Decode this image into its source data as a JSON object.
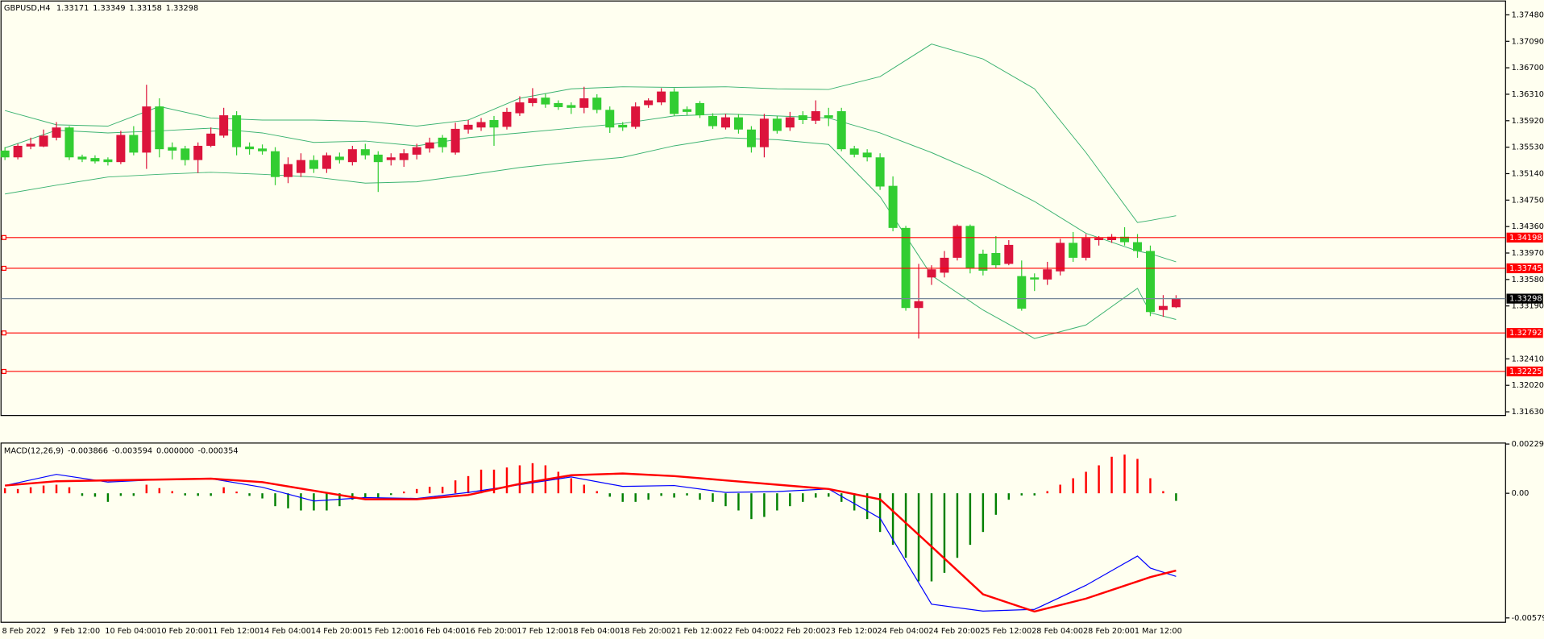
{
  "chart_data": [
    {
      "type": "candlestick",
      "title": "GBPUSD,H4",
      "categories": [
        "8 Feb 2022",
        null,
        null,
        null,
        "9 Feb 12:00",
        null,
        null,
        null,
        "10 Feb 04:00",
        null,
        null,
        null,
        "10 Feb 20:00",
        null,
        null,
        null,
        "11 Feb 12:00",
        null,
        null,
        null,
        "14 Feb 04:00",
        null,
        null,
        null,
        "14 Feb 20:00",
        null,
        null,
        null,
        "15 Feb 12:00",
        null,
        null,
        null,
        "16 Feb 04:00",
        null,
        null,
        null,
        "16 Feb 20:00",
        null,
        null,
        null,
        "17 Feb 12:00",
        null,
        null,
        null,
        "18 Feb 04:00",
        null,
        null,
        null,
        "18 Feb 20:00",
        null,
        null,
        null,
        "21 Feb 12:00",
        null,
        null,
        null,
        "22 Feb 04:00",
        null,
        null,
        null,
        "22 Feb 20:00",
        null,
        null,
        null,
        "23 Feb 12:00",
        null,
        null,
        null,
        "24 Feb 04:00",
        null,
        null,
        null,
        "24 Feb 20:00",
        null,
        null,
        null,
        "25 Feb 12:00",
        null,
        null,
        null,
        "28 Feb 04:00",
        null,
        null,
        null,
        "28 Feb 20:00",
        null,
        null,
        null,
        "1 Mar 12:00",
        null,
        null,
        null
      ],
      "open": [
        1.3548,
        1.3538,
        1.3554,
        1.3554,
        1.3567,
        1.3582,
        1.3539,
        1.3537,
        1.3535,
        1.3531,
        1.3571,
        1.3545,
        1.3613,
        1.3553,
        1.3551,
        1.3534,
        1.3555,
        1.357,
        1.36,
        1.3554,
        1.3551,
        1.3547,
        1.3509,
        1.3515,
        1.3534,
        1.3521,
        1.3539,
        1.3531,
        1.355,
        1.3542,
        1.3534,
        1.3534,
        1.3542,
        1.3551,
        1.3567,
        1.3545,
        1.3579,
        1.3582,
        1.3593,
        1.3583,
        1.3603,
        1.3618,
        1.3626,
        1.3618,
        1.3615,
        1.3611,
        1.3626,
        1.3608,
        1.3586,
        1.3583,
        1.3615,
        1.3619,
        1.3635,
        1.3609,
        1.3618,
        1.3599,
        1.3582,
        1.3597,
        1.3579,
        1.3553,
        1.3595,
        1.3582,
        1.36,
        1.3592,
        1.36,
        1.3606,
        1.3551,
        1.3545,
        1.3538,
        1.3496,
        1.3434,
        1.3316,
        1.3361,
        1.3368,
        1.339,
        1.3437,
        1.3396,
        1.3397,
        1.3381,
        1.3363,
        1.3361,
        1.3358,
        1.337,
        1.3412,
        1.339,
        1.3416,
        1.3416,
        1.3421,
        1.3413,
        1.34,
        1.3313,
        1.33171
      ],
      "high": [
        1.3553,
        1.3558,
        1.3567,
        1.3579,
        1.359,
        1.3584,
        1.3542,
        1.3541,
        1.3538,
        1.3577,
        1.3584,
        1.3645,
        1.3625,
        1.356,
        1.3555,
        1.356,
        1.3582,
        1.3611,
        1.3606,
        1.356,
        1.3557,
        1.3553,
        1.3538,
        1.3544,
        1.3541,
        1.3545,
        1.3545,
        1.3555,
        1.3558,
        1.3547,
        1.3544,
        1.355,
        1.3558,
        1.3567,
        1.3571,
        1.3589,
        1.3593,
        1.3596,
        1.3599,
        1.3611,
        1.3628,
        1.364,
        1.3632,
        1.3622,
        1.3619,
        1.3642,
        1.3631,
        1.3613,
        1.359,
        1.3619,
        1.3625,
        1.364,
        1.364,
        1.3613,
        1.3621,
        1.3603,
        1.3602,
        1.3602,
        1.3584,
        1.3602,
        1.3599,
        1.3605,
        1.3606,
        1.3622,
        1.3611,
        1.3611,
        1.3555,
        1.355,
        1.3544,
        1.351,
        1.3437,
        1.3381,
        1.3379,
        1.34,
        1.3439,
        1.3439,
        1.3402,
        1.3422,
        1.3416,
        1.3386,
        1.3367,
        1.3384,
        1.3418,
        1.3428,
        1.3425,
        1.3422,
        1.3425,
        1.3435,
        1.3425,
        1.3408,
        1.3335,
        1.33349
      ],
      "low": [
        1.3534,
        1.3535,
        1.355,
        1.3553,
        1.3563,
        1.3534,
        1.3531,
        1.3529,
        1.3526,
        1.3528,
        1.3541,
        1.3521,
        1.3538,
        1.3535,
        1.3526,
        1.3515,
        1.3553,
        1.3567,
        1.3541,
        1.3542,
        1.3542,
        1.3497,
        1.35,
        1.3509,
        1.3515,
        1.3515,
        1.3529,
        1.3526,
        1.3535,
        1.3487,
        1.3526,
        1.3524,
        1.3535,
        1.3545,
        1.3545,
        1.3542,
        1.3573,
        1.3577,
        1.3555,
        1.3579,
        1.3599,
        1.3613,
        1.3611,
        1.3608,
        1.3602,
        1.3603,
        1.3603,
        1.3574,
        1.3577,
        1.358,
        1.3611,
        1.3615,
        1.3599,
        1.36,
        1.3596,
        1.358,
        1.3579,
        1.3573,
        1.3545,
        1.3538,
        1.3573,
        1.3577,
        1.3587,
        1.3587,
        1.3584,
        1.3547,
        1.3538,
        1.3532,
        1.349,
        1.3429,
        1.3312,
        1.3271,
        1.335,
        1.3361,
        1.3386,
        1.3367,
        1.3364,
        1.3374,
        1.3379,
        1.3312,
        1.3341,
        1.335,
        1.3364,
        1.3384,
        1.3386,
        1.3408,
        1.3412,
        1.3408,
        1.339,
        1.3304,
        1.3303,
        1.33158
      ],
      "close": [
        1.3538,
        1.3555,
        1.3558,
        1.357,
        1.3582,
        1.3538,
        1.3535,
        1.3532,
        1.3531,
        1.3571,
        1.3545,
        1.3613,
        1.355,
        1.3548,
        1.3534,
        1.3555,
        1.3573,
        1.36,
        1.3553,
        1.355,
        1.3547,
        1.3509,
        1.3528,
        1.3534,
        1.3521,
        1.3541,
        1.3534,
        1.355,
        1.3541,
        1.3531,
        1.3538,
        1.3544,
        1.3553,
        1.356,
        1.3553,
        1.358,
        1.3586,
        1.359,
        1.3582,
        1.3605,
        1.3619,
        1.3625,
        1.3616,
        1.3612,
        1.3611,
        1.3625,
        1.3608,
        1.3582,
        1.3582,
        1.3613,
        1.3622,
        1.3635,
        1.3602,
        1.3605,
        1.36,
        1.3584,
        1.3597,
        1.3579,
        1.3553,
        1.3595,
        1.3577,
        1.3597,
        1.3593,
        1.3606,
        1.3596,
        1.355,
        1.3542,
        1.3538,
        1.3495,
        1.3434,
        1.3316,
        1.3326,
        1.3373,
        1.339,
        1.3437,
        1.3374,
        1.3371,
        1.3379,
        1.3409,
        1.3315,
        1.3358,
        1.3373,
        1.3412,
        1.339,
        1.3419,
        1.3419,
        1.3421,
        1.3413,
        1.34,
        1.331,
        1.3319,
        1.33298
      ],
      "up_color": "#dc143c",
      "down_color": "#32cd32",
      "series": [
        {
          "color": "#3cb371",
          "x": [
            0,
            4,
            8,
            12,
            16,
            20,
            24,
            28,
            32,
            36,
            40,
            44,
            48,
            52,
            56,
            60,
            64,
            68,
            72,
            76,
            80,
            84,
            88,
            89,
            91
          ],
          "values": [
            1.3607,
            1.3586,
            1.3584,
            1.3613,
            1.3596,
            1.3593,
            1.3593,
            1.3591,
            1.3584,
            1.3593,
            1.3625,
            1.3639,
            1.3642,
            1.3641,
            1.3642,
            1.3639,
            1.3638,
            1.3657,
            1.3705,
            1.3683,
            1.3639,
            1.3545,
            1.3442,
            1.3445,
            1.3452
          ]
        },
        {
          "color": "#3cb371",
          "x": [
            0,
            4,
            8,
            12,
            16,
            20,
            24,
            28,
            32,
            36,
            40,
            44,
            48,
            52,
            56,
            60,
            64,
            68,
            72,
            76,
            80,
            84,
            88,
            89,
            91
          ],
          "values": [
            1.3552,
            1.3578,
            1.3574,
            1.3577,
            1.3581,
            1.3574,
            1.356,
            1.3562,
            1.3555,
            1.3567,
            1.3574,
            1.3581,
            1.3588,
            1.3599,
            1.3602,
            1.3599,
            1.3596,
            1.3574,
            1.3545,
            1.3512,
            1.3473,
            1.3426,
            1.34,
            1.3396,
            1.3384
          ]
        },
        {
          "color": "#3cb371",
          "x": [
            0,
            4,
            8,
            12,
            16,
            20,
            24,
            28,
            32,
            36,
            40,
            44,
            48,
            52,
            56,
            60,
            64,
            68,
            72,
            76,
            80,
            84,
            88,
            89,
            91
          ],
          "values": [
            1.3484,
            1.3497,
            1.3509,
            1.3513,
            1.3516,
            1.3513,
            1.3509,
            1.35,
            1.3502,
            1.3512,
            1.3523,
            1.3531,
            1.3538,
            1.3555,
            1.3567,
            1.3564,
            1.3557,
            1.348,
            1.3364,
            1.3313,
            1.3271,
            1.3291,
            1.3345,
            1.3309,
            1.3299
          ]
        }
      ],
      "levels": [
        1.34198,
        1.33745,
        1.32792,
        1.32225
      ],
      "level_color": "#ff0000",
      "last_price_color": "#778899",
      "ylim": [
        1.3159,
        1.3767
      ],
      "yticks": [
        {
          "value": 1.3748,
          "label": "1.37480"
        },
        {
          "value": 1.3709,
          "label": "1.37090"
        },
        {
          "value": 1.367,
          "label": "1.36700"
        },
        {
          "value": 1.3631,
          "label": "1.36310"
        },
        {
          "value": 1.3592,
          "label": "1.35920"
        },
        {
          "value": 1.3553,
          "label": "1.35530"
        },
        {
          "value": 1.3514,
          "label": "1.35140"
        },
        {
          "value": 1.3475,
          "label": "1.34750"
        },
        {
          "value": 1.3436,
          "label": "1.34360"
        },
        {
          "value": 1.3397,
          "label": "1.33970"
        },
        {
          "value": 1.3358,
          "label": "1.33580"
        },
        {
          "value": 1.3319,
          "label": "1.33190"
        },
        {
          "value": 1.3241,
          "label": "1.32410"
        },
        {
          "value": 1.3202,
          "label": "1.32020"
        },
        {
          "value": 1.3163,
          "label": "1.31630"
        }
      ]
    },
    {
      "type": "macd",
      "title": "MACD(12,26,9)",
      "extra_value": "0.000000",
      "histogram": {
        "up_color": "#ff0000",
        "down_color": "#008000",
        "values": [
          0.00024,
          0.0002,
          0.00028,
          0.00036,
          0.0004,
          0.00028,
          -0.00012,
          -0.00016,
          -0.0004,
          -0.00012,
          -0.00012,
          0.0004,
          0.00024,
          0.0001,
          -0.0001,
          -0.00012,
          -0.00012,
          0.00028,
          8e-05,
          -0.00012,
          -0.00024,
          -0.0006,
          -0.0007,
          -0.0008,
          -0.0008,
          -0.0008,
          -0.0006,
          -0.0003,
          -0.0002,
          -0.0002,
          -8e-05,
          8e-05,
          0.0002,
          0.0003,
          0.0003,
          0.0006,
          0.0008,
          0.0011,
          0.0011,
          0.0012,
          0.0013,
          0.0014,
          0.0013,
          0.001,
          0.0007,
          0.0004,
          0.0001,
          -0.00016,
          -0.0004,
          -0.0004,
          -0.0003,
          -0.00012,
          -0.0002,
          -0.0001,
          -0.0003,
          -0.0004,
          -0.0006,
          -0.0008,
          -0.0012,
          -0.0011,
          -0.0008,
          -0.0006,
          -0.0004,
          -0.0002,
          -0.00016,
          -0.0004,
          -0.0008,
          -0.0012,
          -0.0018,
          -0.0024,
          -0.003,
          -0.0041,
          -0.0041,
          -0.0037,
          -0.003,
          -0.0024,
          -0.0018,
          -0.001,
          -0.0003,
          -0.0001,
          -0.0001,
          0.0001,
          0.0004,
          0.0007,
          0.001,
          0.0013,
          0.0017,
          0.0018,
          0.0016,
          0.0007,
          0.0001,
          -0.000354
        ]
      },
      "series": [
        {
          "color": "#0000ff",
          "width": 1,
          "x": [
            0,
            4,
            8,
            12,
            16,
            20,
            24,
            28,
            32,
            36,
            40,
            44,
            48,
            52,
            56,
            60,
            64,
            68,
            72,
            76,
            80,
            84,
            88,
            89,
            91
          ],
          "values": [
            0.00036,
            0.00088,
            0.00052,
            0.00064,
            0.00068,
            0.00028,
            -0.00036,
            -0.0002,
            -0.00024,
            4e-05,
            0.0004,
            0.00076,
            0.00032,
            0.00036,
            4e-05,
            8e-05,
            0.0002,
            -0.00116,
            -0.00516,
            -0.00548,
            -0.0054,
            -0.00428,
            -0.00292,
            -0.00348,
            -0.003866
          ]
        },
        {
          "color": "#ff0000",
          "width": 2,
          "x": [
            0,
            4,
            8,
            12,
            16,
            20,
            24,
            28,
            32,
            36,
            40,
            44,
            48,
            52,
            56,
            60,
            64,
            68,
            72,
            76,
            80,
            84,
            88,
            89,
            91
          ],
          "values": [
            0.00036,
            0.00056,
            0.0006,
            0.00064,
            0.00068,
            0.00052,
            0.00012,
            -0.00028,
            -0.00028,
            -8e-05,
            0.00044,
            0.00084,
            0.00092,
            0.0008,
            0.0006,
            0.0004,
            0.0002,
            -0.00028,
            -0.00248,
            -0.0047,
            -0.0055,
            -0.0049,
            -0.0041,
            -0.0039,
            -0.003594
          ]
        }
      ],
      "ylim": [
        -0.006,
        0.00229
      ],
      "yticks": [
        0.00229,
        {
          "value": 0,
          "label": "0.00"
        },
        -0.005798
      ]
    }
  ]
}
